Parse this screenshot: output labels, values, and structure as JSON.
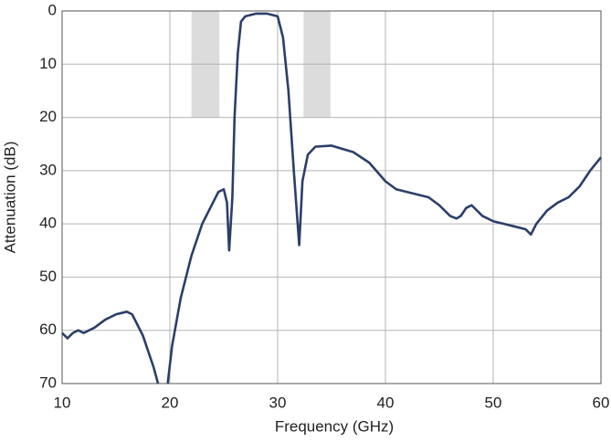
{
  "chart_data": {
    "type": "line",
    "x_label": "Frequency (GHz)",
    "y_label": "Attenuation (dB)",
    "xlim": [
      10,
      60
    ],
    "xticks": [
      10,
      20,
      30,
      40,
      50,
      60
    ],
    "ylim": [
      70,
      0
    ],
    "yticks": [
      0,
      10,
      20,
      30,
      40,
      50,
      60,
      70
    ],
    "grid": true,
    "color": "#2b3f69",
    "shaded_regions": [
      {
        "x": [
          22,
          24.6
        ],
        "y": [
          0,
          20
        ],
        "color": "#dcdcdc"
      },
      {
        "x": [
          32.4,
          34.9
        ],
        "y": [
          0,
          20
        ],
        "color": "#dcdcdc"
      }
    ],
    "x": [
      10,
      10.5,
      11,
      11.5,
      12,
      13,
      14,
      15,
      16,
      16.5,
      17,
      17.5,
      18,
      18.5,
      18.9,
      19.4,
      19.8,
      20.2,
      21,
      22,
      23,
      24,
      24.5,
      25,
      25.3,
      25.5,
      25.8,
      26,
      26.3,
      26.6,
      27,
      28,
      29,
      30,
      30.5,
      31,
      31.5,
      32,
      32.3,
      32.8,
      33.5,
      35,
      37,
      38.5,
      40,
      41,
      43,
      44,
      45,
      46,
      46.6,
      47,
      47.5,
      48,
      49,
      50,
      51,
      52,
      53,
      53.5,
      54,
      55,
      56,
      57,
      58,
      59,
      60
    ],
    "values": [
      60.5,
      61.5,
      60.5,
      60,
      60.5,
      59.5,
      58,
      57,
      56.5,
      57,
      59,
      61,
      64,
      67,
      70,
      null,
      70,
      63,
      54,
      46,
      40,
      36,
      34,
      33.5,
      36,
      45,
      35,
      20,
      8,
      2,
      1,
      0.5,
      0.5,
      1,
      5,
      15,
      30,
      44,
      32,
      27,
      25.5,
      25.3,
      26.5,
      28.5,
      32,
      33.5,
      34.5,
      35,
      36.5,
      38.5,
      39,
      38.5,
      37,
      36.5,
      38.5,
      39.5,
      40,
      40.5,
      41,
      42,
      40,
      37.5,
      36,
      35,
      33,
      30,
      27.5
    ]
  }
}
